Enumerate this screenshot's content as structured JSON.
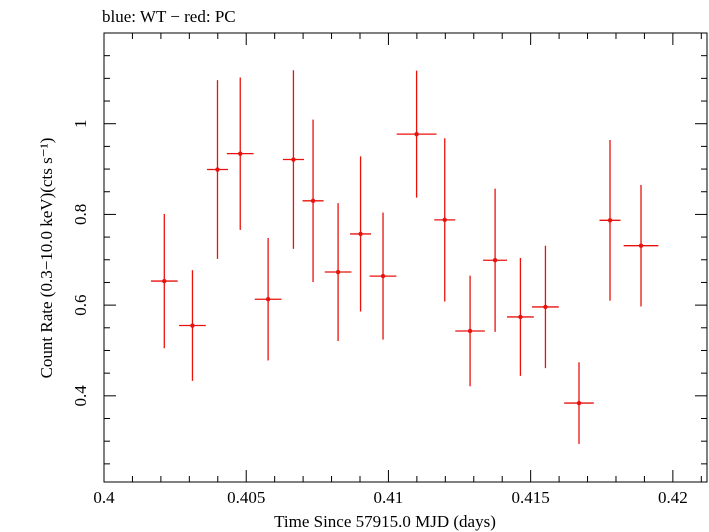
{
  "chart_data": {
    "type": "scatter",
    "title": "blue: WT − red: PC",
    "xlabel": "Time Since 57915.0 MJD (days)",
    "ylabel": "Count Rate (0.3−10.0 keV)(cts s⁻¹)",
    "xlim": [
      0.4,
      0.4212
    ],
    "ylim": [
      0.21,
      1.2
    ],
    "xticks": [
      0.4,
      0.405,
      0.41,
      0.415,
      0.42
    ],
    "xtick_labels": [
      "0.4",
      "0.405",
      "0.41",
      "0.415",
      "0.42"
    ],
    "yticks": [
      0.4,
      0.6,
      0.8,
      1.0
    ],
    "ytick_labels": [
      "0.4",
      "0.6",
      "0.8",
      "1"
    ],
    "series": [
      {
        "name": "PC",
        "color": "#e8120c",
        "points": [
          {
            "x": 0.40212,
            "y": 0.653,
            "xerr": 0.00047,
            "yerr_low": 0.148,
            "yerr_high": 0.148
          },
          {
            "x": 0.40311,
            "y": 0.555,
            "xerr": 0.00047,
            "yerr_low": 0.122,
            "yerr_high": 0.122
          },
          {
            "x": 0.40399,
            "y": 0.899,
            "xerr": 0.00037,
            "yerr_low": 0.197,
            "yerr_high": 0.197
          },
          {
            "x": 0.40479,
            "y": 0.934,
            "xerr": 0.00047,
            "yerr_low": 0.168,
            "yerr_high": 0.168
          },
          {
            "x": 0.40577,
            "y": 0.613,
            "xerr": 0.00047,
            "yerr_low": 0.135,
            "yerr_high": 0.135
          },
          {
            "x": 0.40666,
            "y": 0.921,
            "xerr": 0.00037,
            "yerr_low": 0.197,
            "yerr_high": 0.197
          },
          {
            "x": 0.40735,
            "y": 0.83,
            "xerr": 0.00037,
            "yerr_low": 0.179,
            "yerr_high": 0.179
          },
          {
            "x": 0.40823,
            "y": 0.673,
            "xerr": 0.00047,
            "yerr_low": 0.152,
            "yerr_high": 0.152
          },
          {
            "x": 0.40902,
            "y": 0.757,
            "xerr": 0.00037,
            "yerr_low": 0.171,
            "yerr_high": 0.171
          },
          {
            "x": 0.40981,
            "y": 0.664,
            "xerr": 0.00047,
            "yerr_low": 0.14,
            "yerr_high": 0.14
          },
          {
            "x": 0.41099,
            "y": 0.977,
            "xerr": 0.0007,
            "yerr_low": 0.14,
            "yerr_high": 0.14
          },
          {
            "x": 0.41198,
            "y": 0.788,
            "xerr": 0.00037,
            "yerr_low": 0.18,
            "yerr_high": 0.18
          },
          {
            "x": 0.41287,
            "y": 0.543,
            "xerr": 0.00052,
            "yerr_low": 0.122,
            "yerr_high": 0.122
          },
          {
            "x": 0.41375,
            "y": 0.699,
            "xerr": 0.00042,
            "yerr_low": 0.158,
            "yerr_high": 0.158
          },
          {
            "x": 0.41464,
            "y": 0.574,
            "xerr": 0.00047,
            "yerr_low": 0.13,
            "yerr_high": 0.13
          },
          {
            "x": 0.41552,
            "y": 0.596,
            "xerr": 0.00047,
            "yerr_low": 0.135,
            "yerr_high": 0.135
          },
          {
            "x": 0.4167,
            "y": 0.384,
            "xerr": 0.00052,
            "yerr_low": 0.09,
            "yerr_high": 0.09
          },
          {
            "x": 0.41779,
            "y": 0.787,
            "xerr": 0.00037,
            "yerr_low": 0.177,
            "yerr_high": 0.177
          },
          {
            "x": 0.41888,
            "y": 0.731,
            "xerr": 0.00061,
            "yerr_low": 0.134,
            "yerr_high": 0.134
          }
        ]
      }
    ]
  }
}
